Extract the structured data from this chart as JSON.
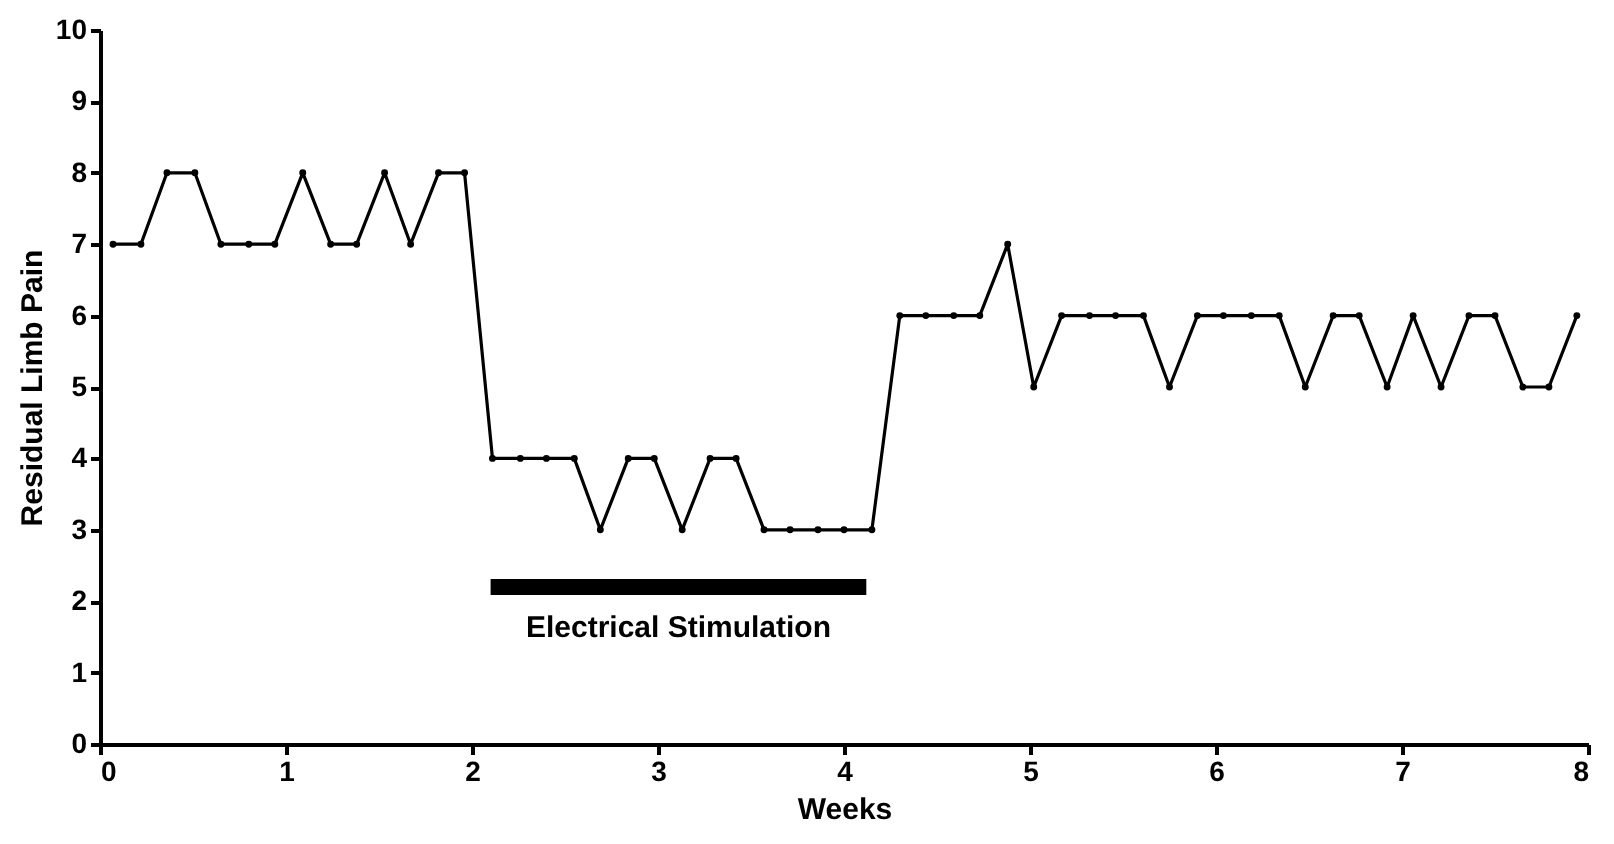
{
  "chart_data": {
    "type": "line",
    "xlabel": "Weeks",
    "ylabel": "Residual Limb Pain",
    "xlim": [
      0,
      8
    ],
    "xticks": [
      0,
      1,
      2,
      3,
      4,
      5,
      6,
      7,
      8
    ],
    "ylim": [
      0,
      10
    ],
    "yticks": [
      0,
      1,
      2,
      3,
      4,
      5,
      6,
      7,
      8,
      9,
      10
    ],
    "grid": false,
    "marker": "circle",
    "line_style": "solid",
    "series": [
      {
        "color": "#000000",
        "x": [
          0.07,
          0.22,
          0.36,
          0.51,
          0.65,
          0.8,
          0.94,
          1.09,
          1.24,
          1.38,
          1.53,
          1.67,
          1.82,
          1.96,
          2.11,
          2.26,
          2.4,
          2.55,
          2.69,
          2.84,
          2.98,
          3.13,
          3.28,
          3.42,
          3.57,
          3.71,
          3.86,
          4.0,
          4.15,
          4.3,
          4.44,
          4.59,
          4.73,
          4.88,
          5.02,
          5.17,
          5.32,
          5.46,
          5.61,
          5.75,
          5.9,
          6.04,
          6.19,
          6.34,
          6.48,
          6.63,
          6.77,
          6.92,
          7.06,
          7.21,
          7.36,
          7.5,
          7.65,
          7.79,
          7.94
        ],
        "values": [
          7,
          7,
          8,
          8,
          7,
          7,
          7,
          8,
          7,
          7,
          8,
          7,
          8,
          8,
          4,
          4,
          4,
          4,
          3,
          4,
          4,
          3,
          4,
          4,
          3,
          3,
          3,
          3,
          3,
          6,
          6,
          6,
          6,
          7,
          5,
          6,
          6,
          6,
          6,
          5,
          6,
          6,
          6,
          6,
          5,
          6,
          6,
          5,
          6,
          5,
          6,
          6,
          5,
          5,
          6
        ]
      },
      {
        "color": "#000000",
        "marker": "none",
        "x": [
          2.1,
          4.12
        ],
        "values": [
          2.2,
          2.2
        ]
      }
    ],
    "annotations": [
      "Electrical Stimulation"
    ]
  }
}
